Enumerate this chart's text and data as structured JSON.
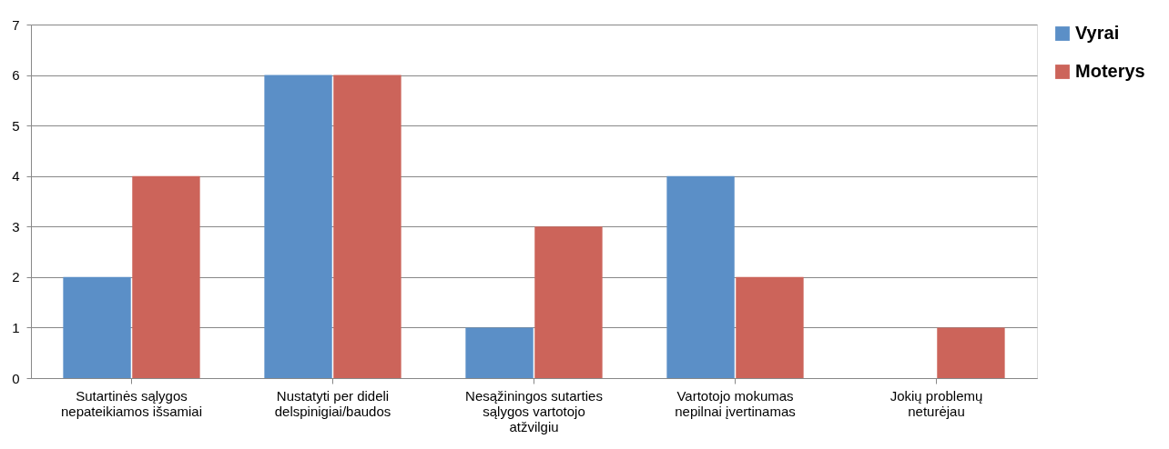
{
  "chart_data": {
    "type": "bar",
    "categories": [
      "Sutartinės sąlygos nepateikiamos išsamiai",
      "Nustatyti per dideli delspinigiai/baudos",
      "Nesąžiningos sutarties sąlygos vartotojo atžvilgiu",
      "Vartotojo mokumas nepilnai įvertinamas",
      "Jokių problemų neturėjau"
    ],
    "series": [
      {
        "name": "Vyrai",
        "color": "#5b8fc7",
        "values": [
          2,
          6,
          1,
          4,
          0
        ]
      },
      {
        "name": "Moterys",
        "color": "#cc645a",
        "values": [
          4,
          6,
          3,
          2,
          1
        ]
      }
    ],
    "ylim": [
      0,
      7
    ],
    "yticks": [
      0,
      1,
      2,
      3,
      4,
      5,
      6,
      7
    ],
    "grid": "y",
    "legend": "right"
  }
}
